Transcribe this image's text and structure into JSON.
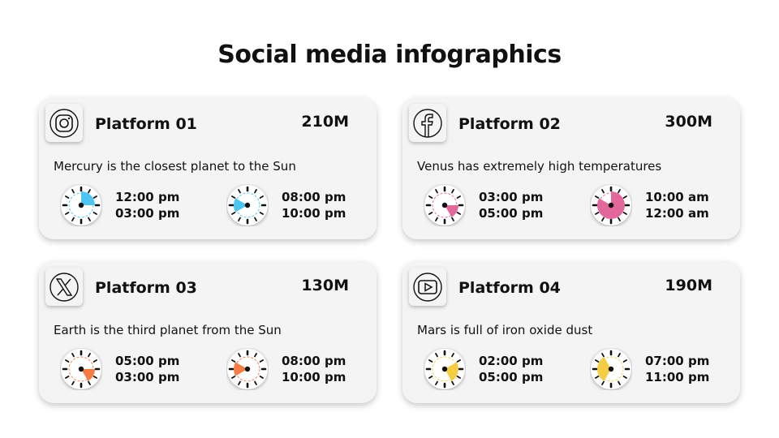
{
  "title": "Social media infographics",
  "platforms": [
    {
      "name": "Platform 01",
      "value": "210M",
      "icon": "instagram-icon",
      "color": "#4cc6f0",
      "description": "Mercury is the closest planet to the Sun",
      "schedules": [
        {
          "start": "12:00 pm",
          "end": "03:00 pm"
        },
        {
          "start": "08:00 pm",
          "end": "10:00 pm"
        }
      ]
    },
    {
      "name": "Platform 02",
      "value": "300M",
      "icon": "facebook-icon",
      "color": "#e2679b",
      "description": "Venus has extremely high temperatures",
      "schedules": [
        {
          "start": "03:00 pm",
          "end": "05:00 pm"
        },
        {
          "start": "10:00 am",
          "end": "12:00 am"
        }
      ]
    },
    {
      "name": "Platform 03",
      "value": "130M",
      "icon": "x-icon",
      "color": "#f57c45",
      "description": "Earth is the third planet from the Sun",
      "schedules": [
        {
          "start": "05:00 pm",
          "end": "03:00 pm"
        },
        {
          "start": "08:00 pm",
          "end": "10:00 pm"
        }
      ]
    },
    {
      "name": "Platform 04",
      "value": "190M",
      "icon": "youtube-icon",
      "color": "#f4cd45",
      "description": "Mars is full of iron oxide dust",
      "schedules": [
        {
          "start": "02:00 pm",
          "end": "05:00 pm"
        },
        {
          "start": "07:00 pm",
          "end": "11:00 pm"
        }
      ]
    }
  ]
}
